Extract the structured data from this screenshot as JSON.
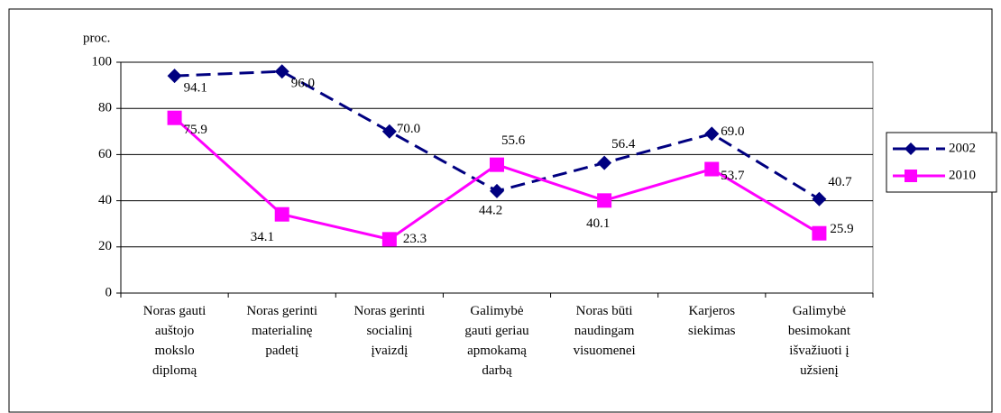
{
  "chart_data": {
    "type": "line",
    "ylabel": "proc.",
    "categories": [
      "Noras gauti\nauštojo\nmokslo\ndiplomą",
      "Noras gerinti\nmaterialinę\npadetį",
      "Noras gerinti\nsocialinį\nįvaizdį",
      "Galimybė\ngauti geriau\napmokamą\ndarbą",
      "Noras būti\nnaudingam\nvisuomenei",
      "Karjeros\nsiekimas",
      "Galimybė\nbesimokant\nišvažiuoti į\nužsienį"
    ],
    "series": [
      {
        "name": "2002",
        "color": "#000080",
        "dashed": true,
        "marker": "diamond",
        "values": [
          94.1,
          96.0,
          70.0,
          44.2,
          56.4,
          69.0,
          40.7
        ],
        "value_labels": [
          "94.1",
          "96.0",
          "70.0",
          "44.2",
          "56.4",
          "69.0",
          "40.7"
        ]
      },
      {
        "name": "2010",
        "color": "#ff00ff",
        "dashed": false,
        "marker": "square",
        "values": [
          75.9,
          34.1,
          23.3,
          55.6,
          40.1,
          53.7,
          25.9
        ],
        "value_labels": [
          "75.9",
          "34.1",
          "23.3",
          "55.6",
          "40.1",
          "53.7",
          "25.9"
        ]
      }
    ],
    "ylim": [
      0,
      100
    ],
    "yticks": [
      0,
      20,
      40,
      60,
      80,
      100
    ],
    "grid": true,
    "legend": "right"
  }
}
